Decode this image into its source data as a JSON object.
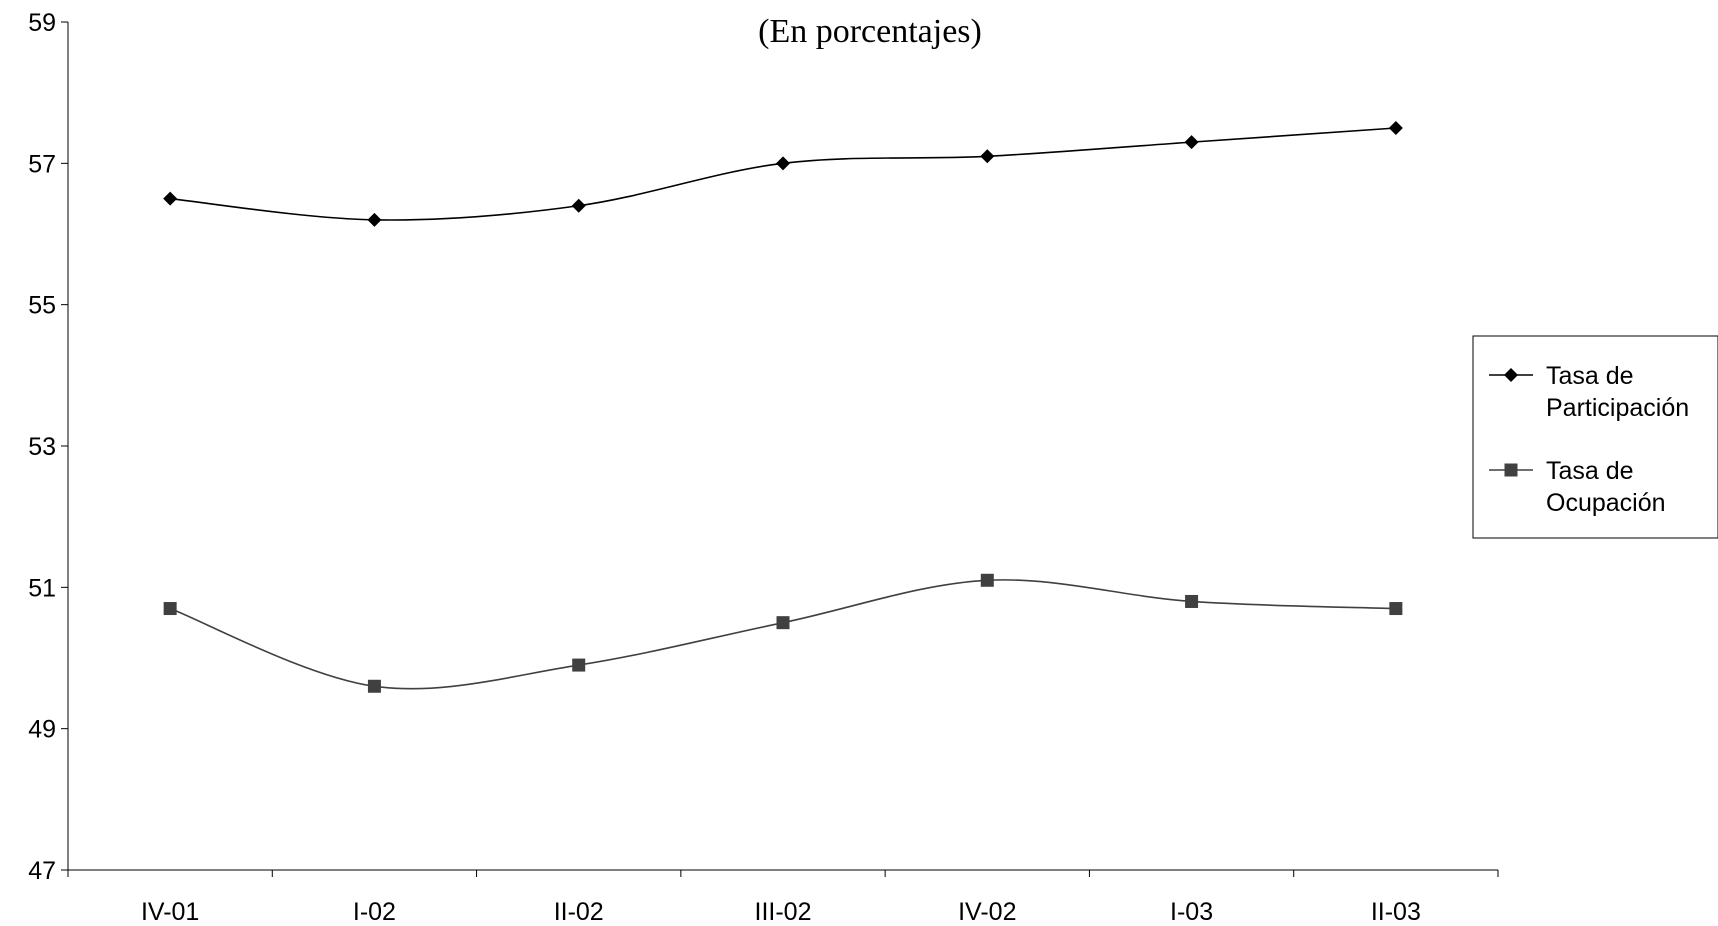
{
  "chart_data": {
    "type": "line",
    "title": "",
    "subtitle": "(En porcentajes)",
    "xlabel": "",
    "ylabel": "",
    "categories": [
      "IV-01",
      "I-02",
      "II-02",
      "III-02",
      "IV-02",
      "I-03",
      "II-03"
    ],
    "ylim": [
      47,
      59
    ],
    "yticks": [
      47,
      49,
      51,
      53,
      55,
      57,
      59
    ],
    "grid": false,
    "smooth": true,
    "legend_position": "right",
    "series": [
      {
        "name": "Tasa de Participación",
        "legend_lines": [
          "Tasa de",
          "Participación"
        ],
        "marker": "diamond",
        "color": "#000000",
        "values": [
          56.5,
          56.2,
          56.4,
          57.0,
          57.1,
          57.3,
          57.5
        ]
      },
      {
        "name": "Tasa de Ocupación",
        "legend_lines": [
          "Tasa de",
          "Ocupación"
        ],
        "marker": "square",
        "color": "#404040",
        "values": [
          50.7,
          49.6,
          49.9,
          50.5,
          51.1,
          50.8,
          50.7
        ]
      }
    ]
  }
}
